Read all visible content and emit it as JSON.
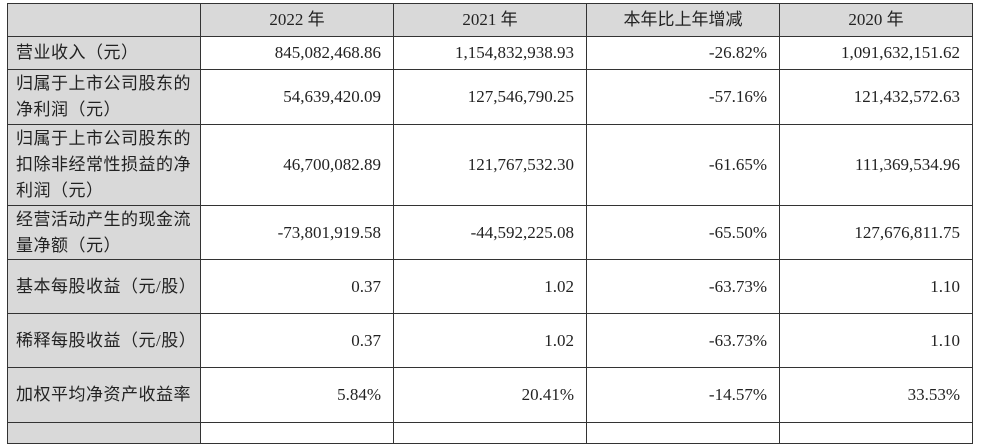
{
  "table": {
    "headers": [
      "",
      "2022 年",
      "2021 年",
      "本年比上年增减",
      "2020 年"
    ],
    "rows": [
      {
        "label": "营业收入（元）",
        "v2022": "845,082,468.86",
        "v2021": "1,154,832,938.93",
        "change": "-26.82%",
        "v2020": "1,091,632,151.62"
      },
      {
        "label": "归属于上市公司股东的净利润（元）",
        "v2022": "54,639,420.09",
        "v2021": "127,546,790.25",
        "change": "-57.16%",
        "v2020": "121,432,572.63"
      },
      {
        "label": "归属于上市公司股东的扣除非经常性损益的净利润（元）",
        "v2022": "46,700,082.89",
        "v2021": "121,767,532.30",
        "change": "-61.65%",
        "v2020": "111,369,534.96"
      },
      {
        "label": "经营活动产生的现金流量净额（元）",
        "v2022": "-73,801,919.58",
        "v2021": "-44,592,225.08",
        "change": "-65.50%",
        "v2020": "127,676,811.75"
      },
      {
        "label": "基本每股收益（元/股）",
        "v2022": "0.37",
        "v2021": "1.02",
        "change": "-63.73%",
        "v2020": "1.10"
      },
      {
        "label": "稀释每股收益（元/股）",
        "v2022": "0.37",
        "v2021": "1.02",
        "change": "-63.73%",
        "v2020": "1.10"
      },
      {
        "label": "加权平均净资产收益率",
        "v2022": "5.84%",
        "v2021": "20.41%",
        "change": "-14.57%",
        "v2020": "33.53%"
      }
    ]
  },
  "colors": {
    "header_bg": "#d9d9d9",
    "border": "#333333"
  }
}
